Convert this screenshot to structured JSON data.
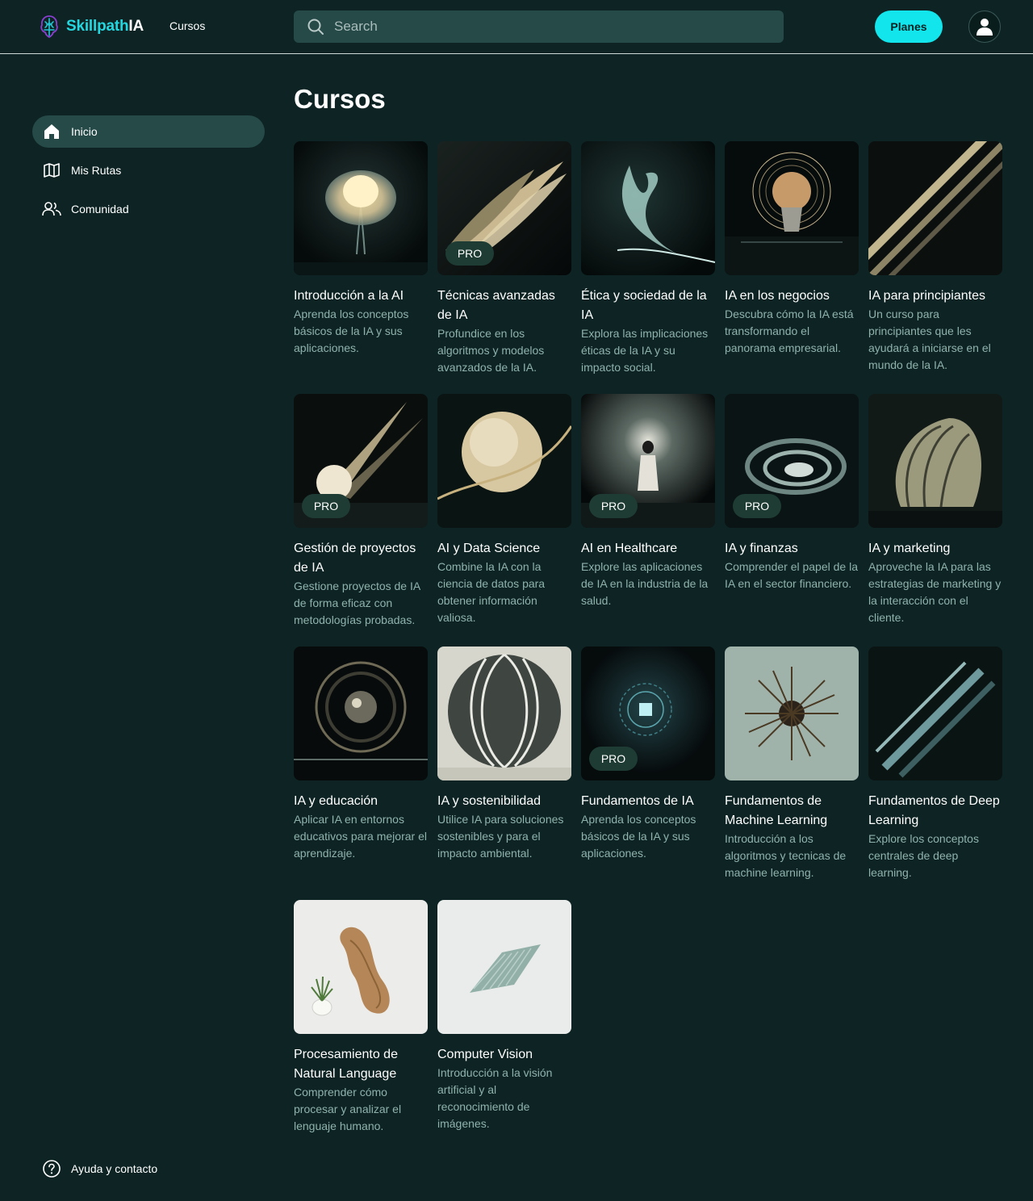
{
  "header": {
    "brand_a": "Skillpath",
    "brand_b": "IA",
    "nav_cursos": "Cursos",
    "search_placeholder": "Search",
    "planes_label": "Planes"
  },
  "sidebar": {
    "items": [
      {
        "label": "Inicio",
        "icon": "home-icon",
        "active": true
      },
      {
        "label": "Mis Rutas",
        "icon": "map-icon",
        "active": false
      },
      {
        "label": "Comunidad",
        "icon": "users-icon",
        "active": false
      }
    ],
    "help_label": "Ayuda y contacto"
  },
  "main": {
    "title": "Cursos",
    "pro_label": "PRO",
    "courses": [
      {
        "title": "Introducción a la AI",
        "desc": "Aprenda los conceptos básicos de la IA y sus aplicaciones.",
        "pro": false,
        "art": "flower"
      },
      {
        "title": "Técnicas avanzadas de IA",
        "desc": "Profundice en los algoritmos y modelos avanzados de la IA.",
        "pro": true,
        "art": "feathers"
      },
      {
        "title": "Ética y sociedad de la IA",
        "desc": "Explora las implicaciones éticas de la IA y su impacto social.",
        "pro": false,
        "art": "plume"
      },
      {
        "title": "IA en los negocios",
        "desc": "Descubra cómo la IA está transformando el panorama empresarial.",
        "pro": false,
        "art": "brain"
      },
      {
        "title": "IA para principiantes",
        "desc": "Un curso para principiantes que les ayudará a iniciarse en el mundo de la IA.",
        "pro": false,
        "art": "stripes"
      },
      {
        "title": "Gestión de proyectos de IA",
        "desc": "Gestione proyectos de IA de forma eficaz con metodologías probadas.",
        "pro": true,
        "art": "rays"
      },
      {
        "title": "AI y Data Science",
        "desc": "Combine la IA con la ciencia de datos para obtener información valiosa.",
        "pro": false,
        "art": "sphere"
      },
      {
        "title": "AI en Healthcare",
        "desc": "Explore las aplicaciones de IA en la industria de la salud.",
        "pro": true,
        "art": "figure"
      },
      {
        "title": "IA y finanzas",
        "desc": "Comprender el papel de la IA en el sector financiero.",
        "pro": true,
        "art": "wave"
      },
      {
        "title": "IA y marketing",
        "desc": "Aproveche la IA para las estrategias de marketing y la interacción con el cliente.",
        "pro": false,
        "art": "fan"
      },
      {
        "title": "IA y educación",
        "desc": "Aplicar IA en entornos educativos para mejorar el aprendizaje.",
        "pro": false,
        "art": "orb"
      },
      {
        "title": "IA y sostenibilidad",
        "desc": "Utilice IA para soluciones sostenibles y para el impacto ambiental.",
        "pro": false,
        "art": "ball"
      },
      {
        "title": "Fundamentos de IA",
        "desc": "Aprenda los conceptos básicos de la IA y sus aplicaciones.",
        "pro": true,
        "art": "chip"
      },
      {
        "title": "Fundamentos de Machine Learning",
        "desc": "Introducción a los algoritmos y tecnicas de machine learning.",
        "pro": false,
        "art": "urchin"
      },
      {
        "title": "Fundamentos de Deep Learning",
        "desc": "Explore los conceptos centrales de deep learning.",
        "pro": false,
        "art": "streaks"
      },
      {
        "title": "Procesamiento de Natural Language",
        "desc": "Comprender cómo procesar y analizar el lenguaje humano.",
        "pro": false,
        "art": "wood"
      },
      {
        "title": "Computer Vision",
        "desc": "Introducción a la visión artificial y al reconocimiento de imágenes.",
        "pro": false,
        "art": "sheet"
      }
    ]
  },
  "colors": {
    "background": "#0e2424",
    "accent": "#12e6ec",
    "brand": "#24d6df",
    "pill": "#264a48",
    "desc_text": "#8fb2ad",
    "pro_badge": "#1e3c33"
  }
}
